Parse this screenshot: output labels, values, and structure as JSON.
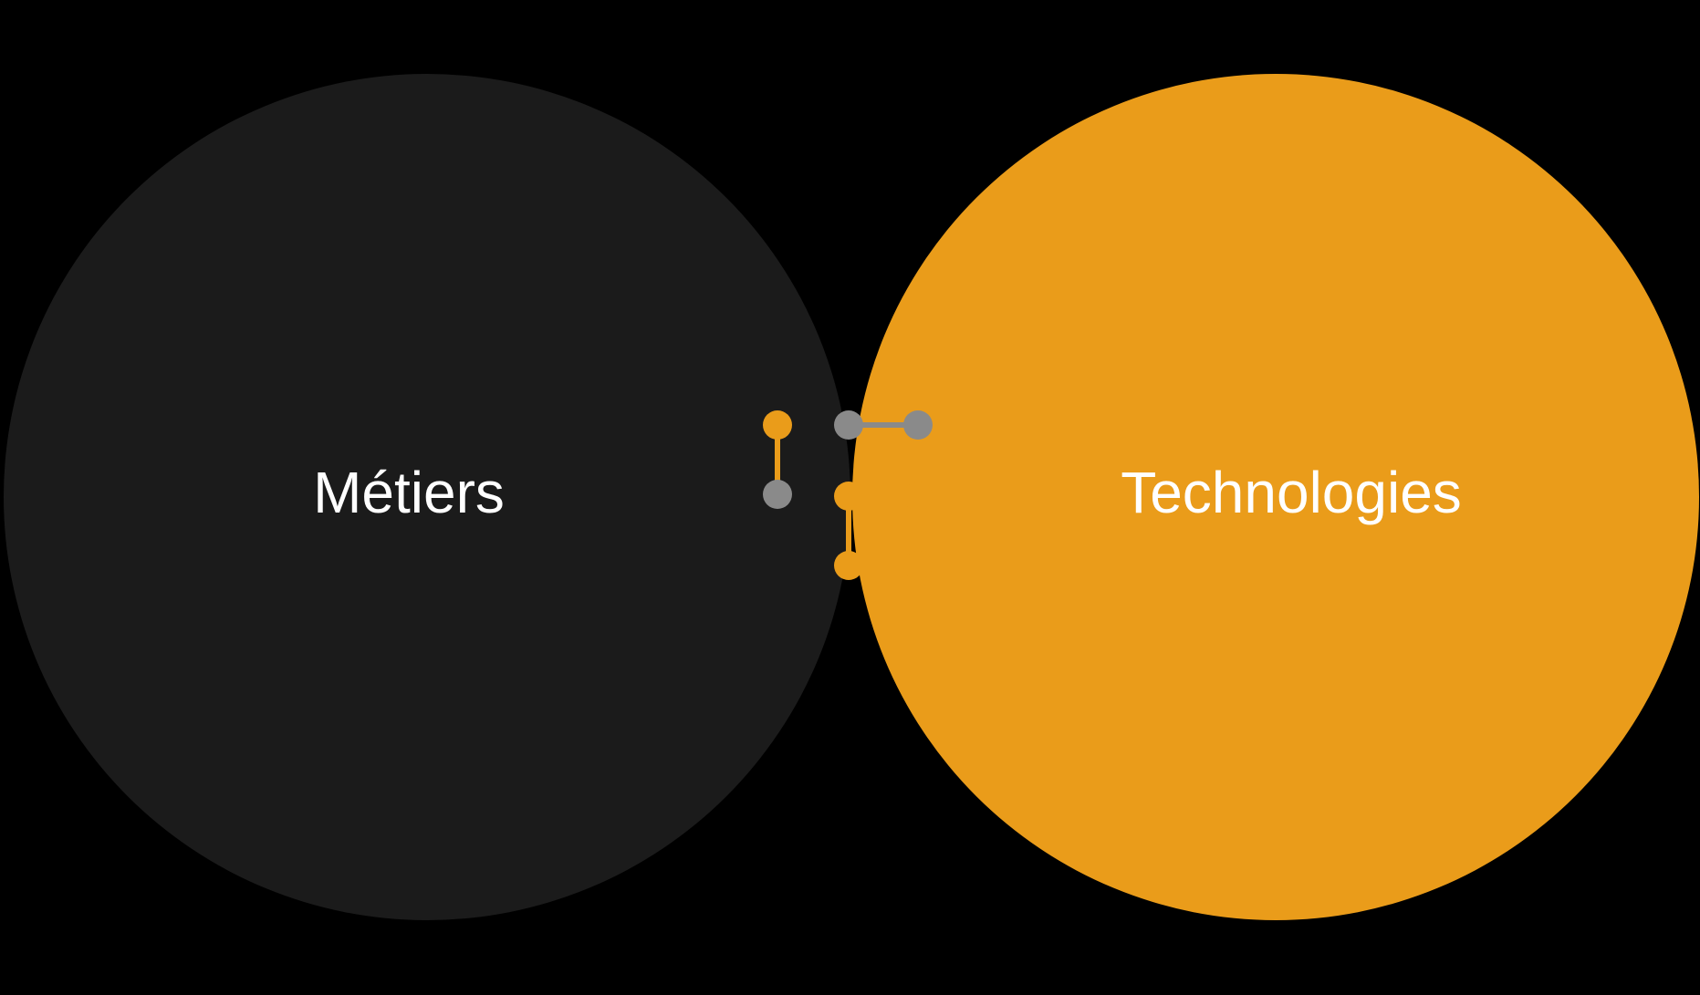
{
  "diagram": {
    "left_circle": {
      "label": "Métiers",
      "color": "#1b1b1b"
    },
    "right_circle": {
      "label": "Technologies",
      "color": "#ea9c1a"
    },
    "intersection": {
      "color": "#fafafa"
    },
    "logo": {
      "name": "dots-network-logo",
      "accent_color": "#ea9c1a",
      "muted_color": "#8a8a8a"
    }
  }
}
